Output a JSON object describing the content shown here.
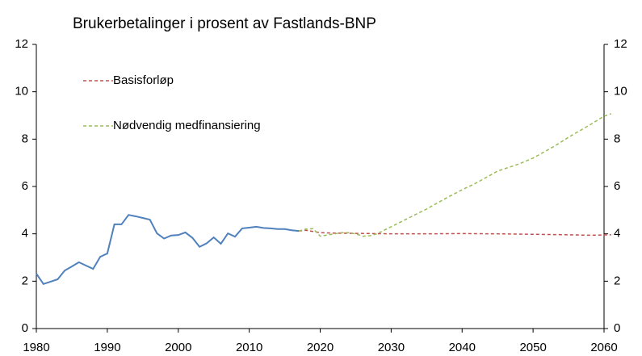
{
  "chart_data": {
    "type": "line",
    "title": "Brukerbetalinger i prosent av Fastlands-BNP",
    "xlim": [
      1980,
      2060
    ],
    "xticks": [
      1980,
      1990,
      2000,
      2010,
      2020,
      2030,
      2040,
      2050,
      2060
    ],
    "ylim": [
      0,
      12
    ],
    "yticks": [
      0,
      2,
      4,
      6,
      8,
      10,
      12
    ],
    "y2lim": [
      0,
      12
    ],
    "y2ticks": [
      0,
      2,
      4,
      6,
      8,
      10,
      12
    ],
    "legend": "upper left",
    "series": [
      {
        "color": "#4f81bd",
        "dash": false,
        "x": [
          1980,
          1981,
          1982,
          1983,
          1984,
          1985,
          1986,
          1987,
          1988,
          1989,
          1990,
          1991,
          1992,
          1993,
          1994,
          1995,
          1996,
          1997,
          1998,
          1999,
          2000,
          2001,
          2002,
          2003,
          2004,
          2005,
          2006,
          2007,
          2008,
          2009,
          2010,
          2011,
          2012,
          2013,
          2014,
          2015,
          2016,
          2017
        ],
        "values": [
          2.32,
          1.88,
          1.98,
          2.08,
          2.45,
          2.62,
          2.8,
          2.66,
          2.52,
          3.03,
          3.17,
          4.4,
          4.4,
          4.8,
          4.74,
          4.67,
          4.6,
          4.02,
          3.8,
          3.93,
          3.95,
          4.06,
          3.83,
          3.45,
          3.6,
          3.85,
          3.58,
          4.02,
          3.88,
          4.23,
          4.26,
          4.3,
          4.25,
          4.23,
          4.2,
          4.2,
          4.15,
          4.12
        ]
      },
      {
        "name": "Basisforløp",
        "color": "#c0504d",
        "dash": true,
        "x": [
          2017,
          2018,
          2019,
          2020,
          2022,
          2025,
          2030,
          2035,
          2040,
          2045,
          2050,
          2055,
          2058,
          2061
        ],
        "values": [
          4.12,
          4.15,
          4.1,
          4.05,
          4.03,
          4.02,
          4.0,
          4.0,
          4.01,
          4.0,
          3.98,
          3.96,
          3.94,
          3.96
        ]
      },
      {
        "name": "Nødvendig medfinansiering",
        "color": "#9bbb59",
        "dash": true,
        "x": [
          2017,
          2018,
          2019,
          2020,
          2021,
          2022,
          2023,
          2024,
          2025,
          2026,
          2027,
          2028,
          2030,
          2032,
          2035,
          2038,
          2040,
          2042,
          2045,
          2048,
          2050,
          2053,
          2055,
          2058,
          2060,
          2061
        ],
        "values": [
          4.12,
          4.2,
          4.22,
          3.9,
          3.95,
          4.0,
          4.05,
          4.05,
          4.0,
          3.9,
          3.92,
          4.0,
          4.3,
          4.6,
          5.05,
          5.55,
          5.86,
          6.15,
          6.65,
          6.95,
          7.2,
          7.7,
          8.08,
          8.6,
          8.97,
          9.07
        ]
      }
    ]
  }
}
